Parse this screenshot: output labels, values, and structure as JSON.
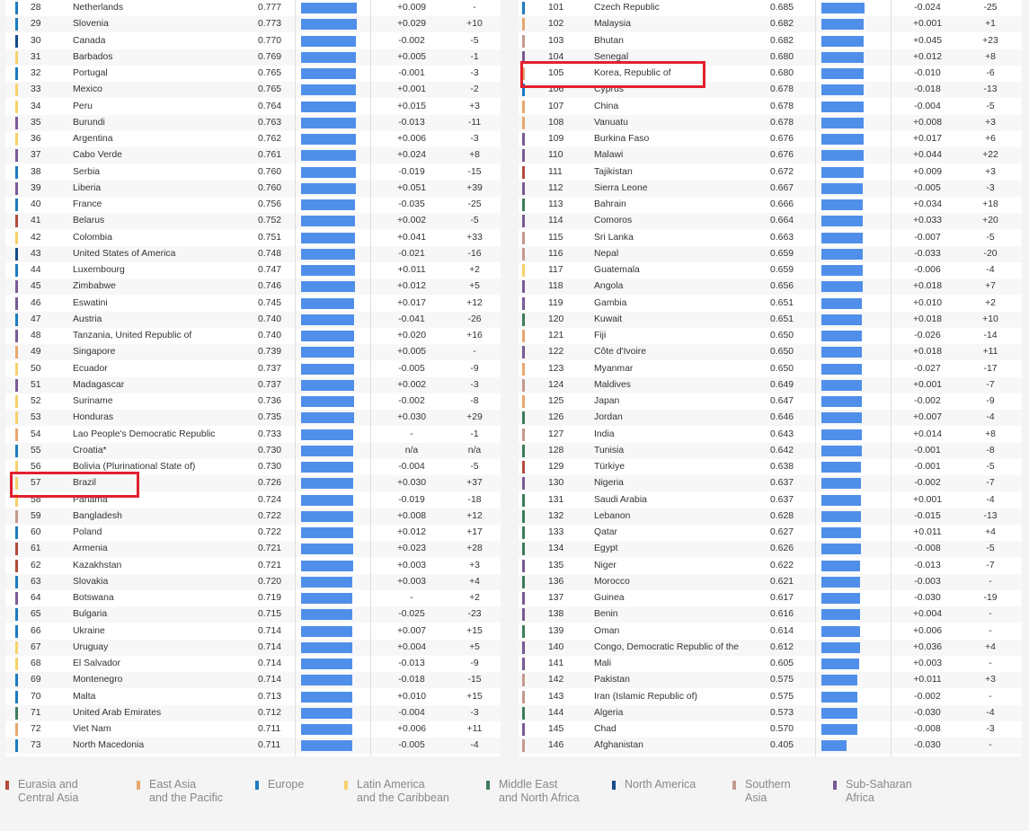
{
  "colors": {
    "Eurasia and Central Asia": "#b34a3c",
    "East Asia and the Pacific": "#e8a76d",
    "Europe": "#1b7bc0",
    "Latin America and the Caribbean": "#f6d26b",
    "Middle East and North Africa": "#3e7c5b",
    "North America": "#154a8a",
    "Southern Asia": "#c49a8e",
    "Sub-Saharan Africa": "#7a5a96"
  },
  "chart_data": {
    "type": "table",
    "value_scale_max": 0.777,
    "columns": [
      "rank",
      "country",
      "score",
      "bar",
      "score_change",
      "rank_change"
    ],
    "left_table": [
      {
        "rank": "28",
        "country": "Netherlands",
        "score": "0.777",
        "change": "+0.009",
        "rank_change": "-",
        "region": "Europe"
      },
      {
        "rank": "29",
        "country": "Slovenia",
        "score": "0.773",
        "change": "+0.029",
        "rank_change": "+10",
        "region": "Europe"
      },
      {
        "rank": "30",
        "country": "Canada",
        "score": "0.770",
        "change": "-0.002",
        "rank_change": "-5",
        "region": "North America"
      },
      {
        "rank": "31",
        "country": "Barbados",
        "score": "0.769",
        "change": "+0.005",
        "rank_change": "-1",
        "region": "Latin America and the Caribbean"
      },
      {
        "rank": "32",
        "country": "Portugal",
        "score": "0.765",
        "change": "-0.001",
        "rank_change": "-3",
        "region": "Europe"
      },
      {
        "rank": "33",
        "country": "Mexico",
        "score": "0.765",
        "change": "+0.001",
        "rank_change": "-2",
        "region": "Latin America and the Caribbean"
      },
      {
        "rank": "34",
        "country": "Peru",
        "score": "0.764",
        "change": "+0.015",
        "rank_change": "+3",
        "region": "Latin America and the Caribbean"
      },
      {
        "rank": "35",
        "country": "Burundi",
        "score": "0.763",
        "change": "-0.013",
        "rank_change": "-11",
        "region": "Sub-Saharan Africa"
      },
      {
        "rank": "36",
        "country": "Argentina",
        "score": "0.762",
        "change": "+0.006",
        "rank_change": "-3",
        "region": "Latin America and the Caribbean"
      },
      {
        "rank": "37",
        "country": "Cabo Verde",
        "score": "0.761",
        "change": "+0.024",
        "rank_change": "+8",
        "region": "Sub-Saharan Africa"
      },
      {
        "rank": "38",
        "country": "Serbia",
        "score": "0.760",
        "change": "-0.019",
        "rank_change": "-15",
        "region": "Europe"
      },
      {
        "rank": "39",
        "country": "Liberia",
        "score": "0.760",
        "change": "+0.051",
        "rank_change": "+39",
        "region": "Sub-Saharan Africa"
      },
      {
        "rank": "40",
        "country": "France",
        "score": "0.756",
        "change": "-0.035",
        "rank_change": "-25",
        "region": "Europe"
      },
      {
        "rank": "41",
        "country": "Belarus",
        "score": "0.752",
        "change": "+0.002",
        "rank_change": "-5",
        "region": "Eurasia and Central Asia"
      },
      {
        "rank": "42",
        "country": "Colombia",
        "score": "0.751",
        "change": "+0.041",
        "rank_change": "+33",
        "region": "Latin America and the Caribbean"
      },
      {
        "rank": "43",
        "country": "United States of America",
        "score": "0.748",
        "change": "-0.021",
        "rank_change": "-16",
        "region": "North America"
      },
      {
        "rank": "44",
        "country": "Luxembourg",
        "score": "0.747",
        "change": "+0.011",
        "rank_change": "+2",
        "region": "Europe"
      },
      {
        "rank": "45",
        "country": "Zimbabwe",
        "score": "0.746",
        "change": "+0.012",
        "rank_change": "+5",
        "region": "Sub-Saharan Africa"
      },
      {
        "rank": "46",
        "country": "Eswatini",
        "score": "0.745",
        "change": "+0.017",
        "rank_change": "+12",
        "region": "Sub-Saharan Africa"
      },
      {
        "rank": "47",
        "country": "Austria",
        "score": "0.740",
        "change": "-0.041",
        "rank_change": "-26",
        "region": "Europe"
      },
      {
        "rank": "48",
        "country": "Tanzania, United Republic of",
        "score": "0.740",
        "change": "+0.020",
        "rank_change": "+16",
        "region": "Sub-Saharan Africa"
      },
      {
        "rank": "49",
        "country": "Singapore",
        "score": "0.739",
        "change": "+0.005",
        "rank_change": "-",
        "region": "East Asia and the Pacific"
      },
      {
        "rank": "50",
        "country": "Ecuador",
        "score": "0.737",
        "change": "-0.005",
        "rank_change": "-9",
        "region": "Latin America and the Caribbean"
      },
      {
        "rank": "51",
        "country": "Madagascar",
        "score": "0.737",
        "change": "+0.002",
        "rank_change": "-3",
        "region": "Sub-Saharan Africa"
      },
      {
        "rank": "52",
        "country": "Suriname",
        "score": "0.736",
        "change": "-0.002",
        "rank_change": "-8",
        "region": "Latin America and the Caribbean"
      },
      {
        "rank": "53",
        "country": "Honduras",
        "score": "0.735",
        "change": "+0.030",
        "rank_change": "+29",
        "region": "Latin America and the Caribbean"
      },
      {
        "rank": "54",
        "country": "Lao People's Democratic Republic",
        "score": "0.733",
        "change": "-",
        "rank_change": "-1",
        "region": "East Asia and the Pacific"
      },
      {
        "rank": "55",
        "country": "Croatia*",
        "score": "0.730",
        "change": "n/a",
        "rank_change": "n/a",
        "region": "Europe"
      },
      {
        "rank": "56",
        "country": "Bolivia (Plurinational State of)",
        "score": "0.730",
        "change": "-0.004",
        "rank_change": "-5",
        "region": "Latin America and the Caribbean"
      },
      {
        "rank": "57",
        "country": "Brazil",
        "score": "0.726",
        "change": "+0.030",
        "rank_change": "+37",
        "region": "Latin America and the Caribbean",
        "highlight": true
      },
      {
        "rank": "58",
        "country": "Panama",
        "score": "0.724",
        "change": "-0.019",
        "rank_change": "-18",
        "region": "Latin America and the Caribbean"
      },
      {
        "rank": "59",
        "country": "Bangladesh",
        "score": "0.722",
        "change": "+0.008",
        "rank_change": "+12",
        "region": "Southern Asia"
      },
      {
        "rank": "60",
        "country": "Poland",
        "score": "0.722",
        "change": "+0.012",
        "rank_change": "+17",
        "region": "Europe"
      },
      {
        "rank": "61",
        "country": "Armenia",
        "score": "0.721",
        "change": "+0.023",
        "rank_change": "+28",
        "region": "Eurasia and Central Asia"
      },
      {
        "rank": "62",
        "country": "Kazakhstan",
        "score": "0.721",
        "change": "+0.003",
        "rank_change": "+3",
        "region": "Eurasia and Central Asia"
      },
      {
        "rank": "63",
        "country": "Slovakia",
        "score": "0.720",
        "change": "+0.003",
        "rank_change": "+4",
        "region": "Europe"
      },
      {
        "rank": "64",
        "country": "Botswana",
        "score": "0.719",
        "change": "-",
        "rank_change": "+2",
        "region": "Sub-Saharan Africa"
      },
      {
        "rank": "65",
        "country": "Bulgaria",
        "score": "0.715",
        "change": "-0.025",
        "rank_change": "-23",
        "region": "Europe"
      },
      {
        "rank": "66",
        "country": "Ukraine",
        "score": "0.714",
        "change": "+0.007",
        "rank_change": "+15",
        "region": "Europe"
      },
      {
        "rank": "67",
        "country": "Uruguay",
        "score": "0.714",
        "change": "+0.004",
        "rank_change": "+5",
        "region": "Latin America and the Caribbean"
      },
      {
        "rank": "68",
        "country": "El Salvador",
        "score": "0.714",
        "change": "-0.013",
        "rank_change": "-9",
        "region": "Latin America and the Caribbean"
      },
      {
        "rank": "69",
        "country": "Montenegro",
        "score": "0.714",
        "change": "-0.018",
        "rank_change": "-15",
        "region": "Europe"
      },
      {
        "rank": "70",
        "country": "Malta",
        "score": "0.713",
        "change": "+0.010",
        "rank_change": "+15",
        "region": "Europe"
      },
      {
        "rank": "71",
        "country": "United Arab Emirates",
        "score": "0.712",
        "change": "-0.004",
        "rank_change": "-3",
        "region": "Middle East and North Africa"
      },
      {
        "rank": "72",
        "country": "Viet Nam",
        "score": "0.711",
        "change": "+0.006",
        "rank_change": "+11",
        "region": "East Asia and the Pacific"
      },
      {
        "rank": "73",
        "country": "North Macedonia",
        "score": "0.711",
        "change": "-0.005",
        "rank_change": "-4",
        "region": "Europe"
      }
    ],
    "right_table": [
      {
        "rank": "101",
        "country": "Czech Republic",
        "score": "0.685",
        "change": "-0.024",
        "rank_change": "-25",
        "region": "Europe"
      },
      {
        "rank": "102",
        "country": "Malaysia",
        "score": "0.682",
        "change": "+0.001",
        "rank_change": "+1",
        "region": "East Asia and the Pacific"
      },
      {
        "rank": "103",
        "country": "Bhutan",
        "score": "0.682",
        "change": "+0.045",
        "rank_change": "+23",
        "region": "Southern Asia"
      },
      {
        "rank": "104",
        "country": "Senegal",
        "score": "0.680",
        "change": "+0.012",
        "rank_change": "+8",
        "region": "Sub-Saharan Africa"
      },
      {
        "rank": "105",
        "country": "Korea, Republic of",
        "score": "0.680",
        "change": "-0.010",
        "rank_change": "-6",
        "region": "East Asia and the Pacific",
        "highlight": true
      },
      {
        "rank": "106",
        "country": "Cyprus",
        "score": "0.678",
        "change": "-0.018",
        "rank_change": "-13",
        "region": "Europe"
      },
      {
        "rank": "107",
        "country": "China",
        "score": "0.678",
        "change": "-0.004",
        "rank_change": "-5",
        "region": "East Asia and the Pacific"
      },
      {
        "rank": "108",
        "country": "Vanuatu",
        "score": "0.678",
        "change": "+0.008",
        "rank_change": "+3",
        "region": "East Asia and the Pacific"
      },
      {
        "rank": "109",
        "country": "Burkina Faso",
        "score": "0.676",
        "change": "+0.017",
        "rank_change": "+6",
        "region": "Sub-Saharan Africa"
      },
      {
        "rank": "110",
        "country": "Malawi",
        "score": "0.676",
        "change": "+0.044",
        "rank_change": "+22",
        "region": "Sub-Saharan Africa"
      },
      {
        "rank": "111",
        "country": "Tajikistan",
        "score": "0.672",
        "change": "+0.009",
        "rank_change": "+3",
        "region": "Eurasia and Central Asia"
      },
      {
        "rank": "112",
        "country": "Sierra Leone",
        "score": "0.667",
        "change": "-0.005",
        "rank_change": "-3",
        "region": "Sub-Saharan Africa"
      },
      {
        "rank": "113",
        "country": "Bahrain",
        "score": "0.666",
        "change": "+0.034",
        "rank_change": "+18",
        "region": "Middle East and North Africa"
      },
      {
        "rank": "114",
        "country": "Comoros",
        "score": "0.664",
        "change": "+0.033",
        "rank_change": "+20",
        "region": "Sub-Saharan Africa"
      },
      {
        "rank": "115",
        "country": "Sri Lanka",
        "score": "0.663",
        "change": "-0.007",
        "rank_change": "-5",
        "region": "Southern Asia"
      },
      {
        "rank": "116",
        "country": "Nepal",
        "score": "0.659",
        "change": "-0.033",
        "rank_change": "-20",
        "region": "Southern Asia"
      },
      {
        "rank": "117",
        "country": "Guatemala",
        "score": "0.659",
        "change": "-0.006",
        "rank_change": "-4",
        "region": "Latin America and the Caribbean"
      },
      {
        "rank": "118",
        "country": "Angola",
        "score": "0.656",
        "change": "+0.018",
        "rank_change": "+7",
        "region": "Sub-Saharan Africa"
      },
      {
        "rank": "119",
        "country": "Gambia",
        "score": "0.651",
        "change": "+0.010",
        "rank_change": "+2",
        "region": "Sub-Saharan Africa"
      },
      {
        "rank": "120",
        "country": "Kuwait",
        "score": "0.651",
        "change": "+0.018",
        "rank_change": "+10",
        "region": "Middle East and North Africa"
      },
      {
        "rank": "121",
        "country": "Fiji",
        "score": "0.650",
        "change": "-0.026",
        "rank_change": "-14",
        "region": "East Asia and the Pacific"
      },
      {
        "rank": "122",
        "country": "Côte d'Ivoire",
        "score": "0.650",
        "change": "+0.018",
        "rank_change": "+11",
        "region": "Sub-Saharan Africa"
      },
      {
        "rank": "123",
        "country": "Myanmar",
        "score": "0.650",
        "change": "-0.027",
        "rank_change": "-17",
        "region": "East Asia and the Pacific"
      },
      {
        "rank": "124",
        "country": "Maldives",
        "score": "0.649",
        "change": "+0.001",
        "rank_change": "-7",
        "region": "Southern Asia"
      },
      {
        "rank": "125",
        "country": "Japan",
        "score": "0.647",
        "change": "-0.002",
        "rank_change": "-9",
        "region": "East Asia and the Pacific"
      },
      {
        "rank": "126",
        "country": "Jordan",
        "score": "0.646",
        "change": "+0.007",
        "rank_change": "-4",
        "region": "Middle East and North Africa"
      },
      {
        "rank": "127",
        "country": "India",
        "score": "0.643",
        "change": "+0.014",
        "rank_change": "+8",
        "region": "Southern Asia"
      },
      {
        "rank": "128",
        "country": "Tunisia",
        "score": "0.642",
        "change": "-0.001",
        "rank_change": "-8",
        "region": "Middle East and North Africa"
      },
      {
        "rank": "129",
        "country": "Türkiye",
        "score": "0.638",
        "change": "-0.001",
        "rank_change": "-5",
        "region": "Eurasia and Central Asia"
      },
      {
        "rank": "130",
        "country": "Nigeria",
        "score": "0.637",
        "change": "-0.002",
        "rank_change": "-7",
        "region": "Sub-Saharan Africa"
      },
      {
        "rank": "131",
        "country": "Saudi Arabia",
        "score": "0.637",
        "change": "+0.001",
        "rank_change": "-4",
        "region": "Middle East and North Africa"
      },
      {
        "rank": "132",
        "country": "Lebanon",
        "score": "0.628",
        "change": "-0.015",
        "rank_change": "-13",
        "region": "Middle East and North Africa"
      },
      {
        "rank": "133",
        "country": "Qatar",
        "score": "0.627",
        "change": "+0.011",
        "rank_change": "+4",
        "region": "Middle East and North Africa"
      },
      {
        "rank": "134",
        "country": "Egypt",
        "score": "0.626",
        "change": "-0.008",
        "rank_change": "-5",
        "region": "Middle East and North Africa"
      },
      {
        "rank": "135",
        "country": "Niger",
        "score": "0.622",
        "change": "-0.013",
        "rank_change": "-7",
        "region": "Sub-Saharan Africa"
      },
      {
        "rank": "136",
        "country": "Morocco",
        "score": "0.621",
        "change": "-0.003",
        "rank_change": "-",
        "region": "Middle East and North Africa"
      },
      {
        "rank": "137",
        "country": "Guinea",
        "score": "0.617",
        "change": "-0.030",
        "rank_change": "-19",
        "region": "Sub-Saharan Africa"
      },
      {
        "rank": "138",
        "country": "Benin",
        "score": "0.616",
        "change": "+0.004",
        "rank_change": "-",
        "region": "Sub-Saharan Africa"
      },
      {
        "rank": "139",
        "country": "Oman",
        "score": "0.614",
        "change": "+0.006",
        "rank_change": "-",
        "region": "Middle East and North Africa"
      },
      {
        "rank": "140",
        "country": "Congo, Democratic Republic of the",
        "score": "0.612",
        "change": "+0.036",
        "rank_change": "+4",
        "region": "Sub-Saharan Africa"
      },
      {
        "rank": "141",
        "country": "Mali",
        "score": "0.605",
        "change": "+0.003",
        "rank_change": "-",
        "region": "Sub-Saharan Africa"
      },
      {
        "rank": "142",
        "country": "Pakistan",
        "score": "0.575",
        "change": "+0.011",
        "rank_change": "+3",
        "region": "Southern Asia"
      },
      {
        "rank": "143",
        "country": "Iran (Islamic Republic of)",
        "score": "0.575",
        "change": "-0.002",
        "rank_change": "-",
        "region": "Southern Asia"
      },
      {
        "rank": "144",
        "country": "Algeria",
        "score": "0.573",
        "change": "-0.030",
        "rank_change": "-4",
        "region": "Middle East and North Africa"
      },
      {
        "rank": "145",
        "country": "Chad",
        "score": "0.570",
        "change": "-0.008",
        "rank_change": "-3",
        "region": "Sub-Saharan Africa"
      },
      {
        "rank": "146",
        "country": "Afghanistan",
        "score": "0.405",
        "change": "-0.030",
        "rank_change": "-",
        "region": "Southern Asia"
      }
    ],
    "legend": [
      {
        "region": "Eurasia and Central Asia",
        "line1": "Eurasia and",
        "line2": "Central Asia"
      },
      {
        "region": "East Asia and the Pacific",
        "line1": "East Asia",
        "line2": "and the Pacific"
      },
      {
        "region": "Europe",
        "line1": "Europe",
        "line2": ""
      },
      {
        "region": "Latin America and the Caribbean",
        "line1": "Latin America",
        "line2": "and the Caribbean"
      },
      {
        "region": "Middle East and North Africa",
        "line1": "Middle East",
        "line2": "and North Africa"
      },
      {
        "region": "North America",
        "line1": "North America",
        "line2": ""
      },
      {
        "region": "Southern Asia",
        "line1": "Southern",
        "line2": "Asia"
      },
      {
        "region": "Sub-Saharan Africa",
        "line1": "Sub-Saharan",
        "line2": "Africa"
      }
    ]
  }
}
